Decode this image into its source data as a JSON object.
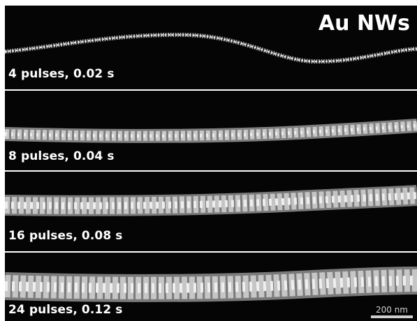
{
  "figure": {
    "title": "Au NWs",
    "scale_bar": "200 nm",
    "panels": [
      {
        "label": "4 pulses, 0.02 s"
      },
      {
        "label": "8 pulses, 0.04 s"
      },
      {
        "label": "16 pulses, 0.08 s"
      },
      {
        "label": "24 pulses, 0.12 s"
      }
    ]
  }
}
